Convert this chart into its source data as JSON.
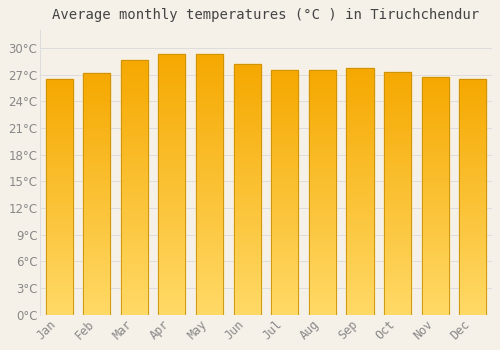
{
  "months": [
    "Jan",
    "Feb",
    "Mar",
    "Apr",
    "May",
    "Jun",
    "Jul",
    "Aug",
    "Sep",
    "Oct",
    "Nov",
    "Dec"
  ],
  "temperatures": [
    26.5,
    27.2,
    28.7,
    29.4,
    29.3,
    28.2,
    27.5,
    27.5,
    27.8,
    27.3,
    26.8,
    26.5
  ],
  "bar_color_top": "#F5A800",
  "bar_color_bottom": "#FFD966",
  "bar_edge_color": "#C8900A",
  "title": "Average monthly temperatures (°C ) in Tiruchchendur",
  "ylim": [
    0,
    32
  ],
  "yticks": [
    0,
    3,
    6,
    9,
    12,
    15,
    18,
    21,
    24,
    27,
    30
  ],
  "background_color": "#F5F0E8",
  "plot_bg_color": "#F5F0E8",
  "grid_color": "#DDDDDD",
  "title_fontsize": 10,
  "tick_fontsize": 8.5,
  "tick_color": "#888888",
  "title_color": "#444444"
}
